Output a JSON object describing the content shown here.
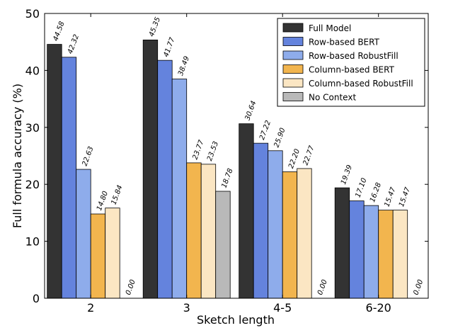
{
  "chart_data": {
    "type": "bar",
    "title": "",
    "xlabel": "Sketch length",
    "ylabel": "Full formula accuracy (%)",
    "categories": [
      "2",
      "3",
      "4-5",
      "6-20"
    ],
    "ylim": [
      0,
      50
    ],
    "yticks": [
      0,
      10,
      20,
      30,
      40,
      50
    ],
    "grid": false,
    "legend_position": "top-right",
    "series": [
      {
        "name": "Full Model",
        "color": "#333333",
        "values": [
          44.58,
          45.35,
          30.64,
          19.39
        ],
        "labels": [
          "44.58",
          "45.35",
          "30.64",
          "19.39"
        ]
      },
      {
        "name": "Row-based BERT",
        "color": "#6483dd",
        "values": [
          42.32,
          41.77,
          27.22,
          17.1
        ],
        "labels": [
          "42.32",
          "41.77",
          "27.22",
          "17.10"
        ]
      },
      {
        "name": "Row-based RobustFill",
        "color": "#8eaceb",
        "values": [
          22.63,
          38.49,
          25.9,
          16.28
        ],
        "labels": [
          "22.63",
          "38.49",
          "25.90",
          "16.28"
        ]
      },
      {
        "name": "Column-based BERT",
        "color": "#f2b54e",
        "values": [
          14.8,
          23.77,
          22.2,
          15.47
        ],
        "labels": [
          "14.80",
          "23.77",
          "22.20",
          "15.47"
        ]
      },
      {
        "name": "Column-based RobustFill",
        "color": "#fbe6c3",
        "values": [
          15.84,
          23.53,
          22.77,
          15.47
        ],
        "labels": [
          "15.84",
          "23.53",
          "22.77",
          "15.47"
        ]
      },
      {
        "name": "No Context",
        "color": "#b9b9b9",
        "values": [
          0.0,
          18.78,
          0.0,
          0.0
        ],
        "labels": [
          "0.00",
          "18.78",
          "0.00",
          "0.00"
        ]
      }
    ]
  }
}
